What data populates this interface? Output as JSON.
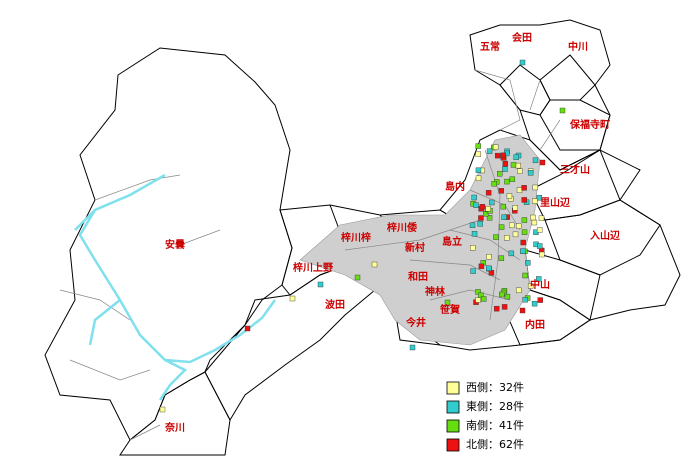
{
  "regions": [
    {
      "label": "五常"
    },
    {
      "label": "会田"
    },
    {
      "label": "中川"
    },
    {
      "label": "保福寺町"
    },
    {
      "label": "三才山"
    },
    {
      "label": "島内"
    },
    {
      "label": "里山辺"
    },
    {
      "label": "入山辺"
    },
    {
      "label": "梓川倭"
    },
    {
      "label": "梓川梓"
    },
    {
      "label": "新村"
    },
    {
      "label": "島立"
    },
    {
      "label": "安曇"
    },
    {
      "label": "梓川上野"
    },
    {
      "label": "和田"
    },
    {
      "label": "神林"
    },
    {
      "label": "中山"
    },
    {
      "label": "波田"
    },
    {
      "label": "今井"
    },
    {
      "label": "笹賀"
    },
    {
      "label": "内田"
    },
    {
      "label": "奈川"
    }
  ],
  "legend": [
    {
      "label": "西側：32件",
      "color": "#ffff99"
    },
    {
      "label": "東側：28件",
      "color": "#33cccc"
    },
    {
      "label": "南側：41件",
      "color": "#66dd11"
    },
    {
      "label": "北側：62件",
      "color": "#ee1111"
    }
  ]
}
